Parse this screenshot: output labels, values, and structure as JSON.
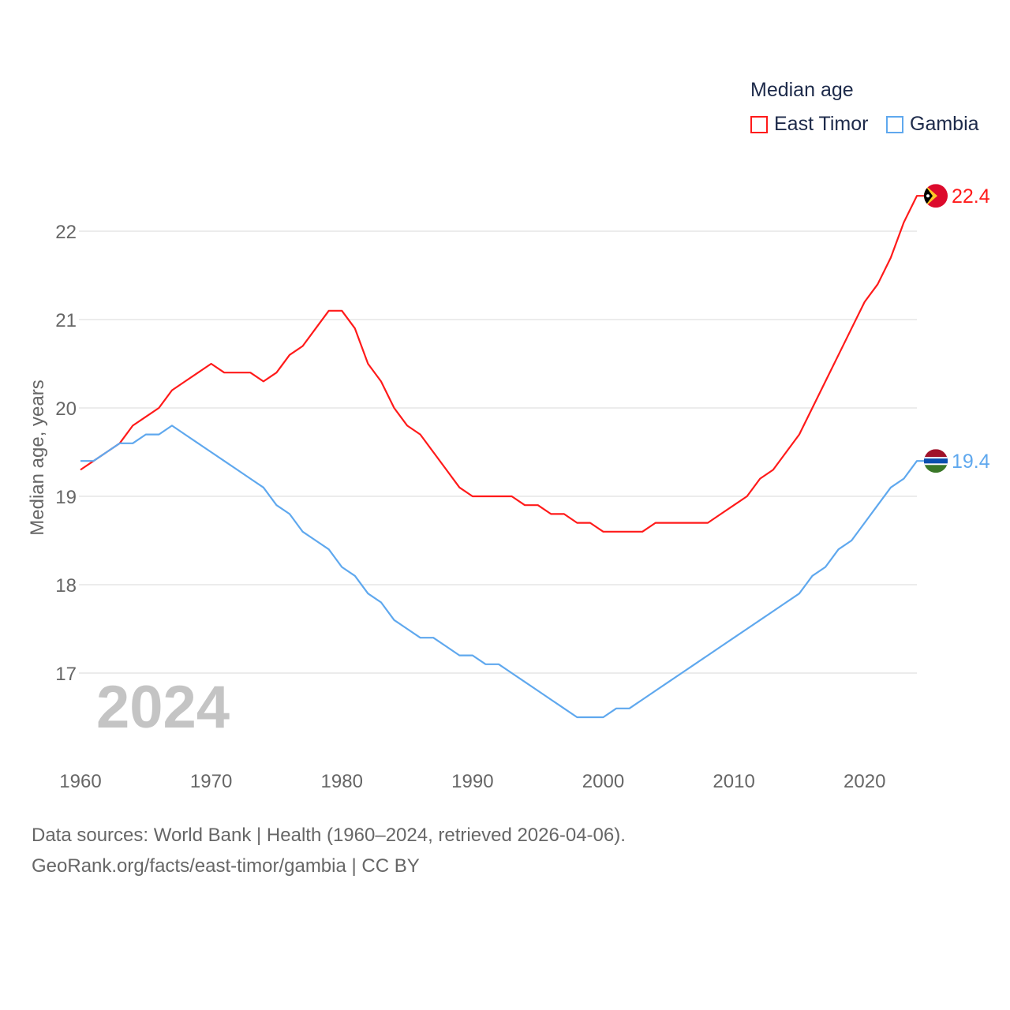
{
  "chart_data": {
    "type": "line",
    "title": "Median age",
    "ylabel": "Median age, years",
    "xlabel": "",
    "xlim": [
      1960,
      2024
    ],
    "ylim": [
      16.1,
      22.9
    ],
    "grid": true,
    "legend_placement": "top-right",
    "x_ticks": [
      "1960",
      "1970",
      "1980",
      "1990",
      "2000",
      "2010",
      "2020"
    ],
    "y_ticks": [
      "17",
      "18",
      "19",
      "20",
      "21",
      "22"
    ],
    "year_watermark": "2024",
    "x": [
      1960,
      1961,
      1962,
      1963,
      1964,
      1965,
      1966,
      1967,
      1968,
      1969,
      1970,
      1971,
      1972,
      1973,
      1974,
      1975,
      1976,
      1977,
      1978,
      1979,
      1980,
      1981,
      1982,
      1983,
      1984,
      1985,
      1986,
      1987,
      1988,
      1989,
      1990,
      1991,
      1992,
      1993,
      1994,
      1995,
      1996,
      1997,
      1998,
      1999,
      2000,
      2001,
      2002,
      2003,
      2004,
      2005,
      2006,
      2007,
      2008,
      2009,
      2010,
      2011,
      2012,
      2013,
      2014,
      2015,
      2016,
      2017,
      2018,
      2019,
      2020,
      2021,
      2022,
      2023,
      2024
    ],
    "series": [
      {
        "name": "East Timor",
        "color": "#ff1a1a",
        "end_label": "22.4",
        "values": [
          19.3,
          19.4,
          19.5,
          19.6,
          19.8,
          19.9,
          20.0,
          20.2,
          20.3,
          20.4,
          20.5,
          20.4,
          20.4,
          20.4,
          20.3,
          20.4,
          20.6,
          20.7,
          20.9,
          21.1,
          21.1,
          20.9,
          20.5,
          20.3,
          20.0,
          19.8,
          19.7,
          19.5,
          19.3,
          19.1,
          19.0,
          19.0,
          19.0,
          19.0,
          18.9,
          18.9,
          18.8,
          18.8,
          18.7,
          18.7,
          18.6,
          18.6,
          18.6,
          18.6,
          18.7,
          18.7,
          18.7,
          18.7,
          18.7,
          18.8,
          18.9,
          19.0,
          19.2,
          19.3,
          19.5,
          19.7,
          20.0,
          20.3,
          20.6,
          20.9,
          21.2,
          21.4,
          21.7,
          22.1,
          22.4
        ]
      },
      {
        "name": "Gambia",
        "color": "#5fa8ee",
        "end_label": "19.4",
        "values": [
          19.4,
          19.4,
          19.5,
          19.6,
          19.6,
          19.7,
          19.7,
          19.8,
          19.7,
          19.6,
          19.5,
          19.4,
          19.3,
          19.2,
          19.1,
          18.9,
          18.8,
          18.6,
          18.5,
          18.4,
          18.2,
          18.1,
          17.9,
          17.8,
          17.6,
          17.5,
          17.4,
          17.4,
          17.3,
          17.2,
          17.2,
          17.1,
          17.1,
          17.0,
          16.9,
          16.8,
          16.7,
          16.6,
          16.5,
          16.5,
          16.5,
          16.6,
          16.6,
          16.7,
          16.8,
          16.9,
          17.0,
          17.1,
          17.2,
          17.3,
          17.4,
          17.5,
          17.6,
          17.7,
          17.8,
          17.9,
          18.1,
          18.2,
          18.4,
          18.5,
          18.7,
          18.9,
          19.1,
          19.2,
          19.4
        ]
      }
    ]
  },
  "footer": {
    "line1": "Data sources: World Bank | Health (1960–2024, retrieved 2026-04-06).",
    "line2": "GeoRank.org/facts/east-timor/gambia | CC BY"
  }
}
